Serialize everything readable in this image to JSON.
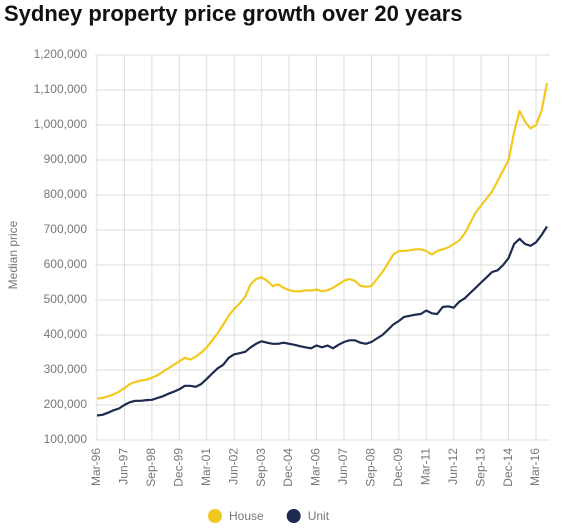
{
  "chart_data": {
    "type": "line",
    "title": "Sydney property price growth over 20 years",
    "y_label": "Median price",
    "categories": [
      "Mar-96",
      null,
      null,
      null,
      null,
      "Jun-97",
      null,
      null,
      null,
      null,
      "Sep-98",
      null,
      null,
      null,
      null,
      "Dec-99",
      null,
      null,
      null,
      null,
      "Mar-01",
      null,
      null,
      null,
      null,
      "Jun-02",
      null,
      null,
      null,
      null,
      "Sep-03",
      null,
      null,
      null,
      null,
      "Dec-04",
      null,
      null,
      null,
      null,
      "Mar-06",
      null,
      null,
      null,
      null,
      "Jun-07",
      null,
      null,
      null,
      null,
      "Sep-08",
      null,
      null,
      null,
      null,
      "Dec-09",
      null,
      null,
      null,
      null,
      "Mar-11",
      null,
      null,
      null,
      null,
      "Jun-12",
      null,
      null,
      null,
      null,
      "Sep-13",
      null,
      null,
      null,
      null,
      "Dec-14",
      null,
      null,
      null,
      null,
      "Mar-16",
      null,
      null
    ],
    "series": [
      {
        "name": "House",
        "color": "#f2c81e",
        "values": [
          218000,
          220000,
          225000,
          230000,
          238000,
          248000,
          260000,
          266000,
          270000,
          272000,
          278000,
          285000,
          295000,
          305000,
          315000,
          325000,
          335000,
          330000,
          338000,
          350000,
          365000,
          385000,
          405000,
          430000,
          455000,
          475000,
          490000,
          510000,
          545000,
          560000,
          565000,
          555000,
          540000,
          545000,
          535000,
          528000,
          525000,
          525000,
          528000,
          527000,
          530000,
          525000,
          528000,
          535000,
          545000,
          555000,
          560000,
          555000,
          540000,
          538000,
          540000,
          560000,
          580000,
          605000,
          630000,
          640000,
          640000,
          642000,
          645000,
          645000,
          640000,
          630000,
          640000,
          645000,
          650000,
          660000,
          670000,
          690000,
          720000,
          750000,
          770000,
          790000,
          810000,
          840000,
          870000,
          900000,
          980000,
          1040000,
          1010000,
          990000,
          1000000,
          1040000,
          1120000
        ]
      },
      {
        "name": "Unit",
        "color": "#1b2a4e",
        "values": [
          170000,
          172000,
          178000,
          185000,
          190000,
          200000,
          208000,
          212000,
          212000,
          214000,
          215000,
          220000,
          225000,
          232000,
          238000,
          245000,
          255000,
          255000,
          252000,
          260000,
          275000,
          290000,
          305000,
          315000,
          335000,
          345000,
          348000,
          352000,
          365000,
          375000,
          382000,
          378000,
          375000,
          375000,
          378000,
          375000,
          372000,
          368000,
          365000,
          362000,
          370000,
          365000,
          370000,
          362000,
          372000,
          380000,
          385000,
          385000,
          378000,
          375000,
          380000,
          390000,
          400000,
          415000,
          430000,
          440000,
          452000,
          455000,
          458000,
          460000,
          470000,
          462000,
          460000,
          480000,
          482000,
          478000,
          495000,
          505000,
          520000,
          535000,
          550000,
          565000,
          580000,
          585000,
          600000,
          620000,
          660000,
          675000,
          660000,
          655000,
          665000,
          685000,
          710000
        ]
      }
    ],
    "ylim": [
      100000,
      1200000
    ],
    "yticks": [
      {
        "value": 100000,
        "label": "100,000"
      },
      {
        "value": 200000,
        "label": "200,000"
      },
      {
        "value": 300000,
        "label": "300,000"
      },
      {
        "value": 400000,
        "label": "400,000"
      },
      {
        "value": 500000,
        "label": "500,000"
      },
      {
        "value": 600000,
        "label": "600,000"
      },
      {
        "value": 700000,
        "label": "700,000"
      },
      {
        "value": 800000,
        "label": "800,000"
      },
      {
        "value": 900000,
        "label": "900,000"
      },
      {
        "value": 1000000,
        "label": "1,000,000"
      },
      {
        "value": 1100000,
        "label": "1,100,000"
      },
      {
        "value": 1200000,
        "label": "1,200,000"
      }
    ],
    "grid": true
  }
}
